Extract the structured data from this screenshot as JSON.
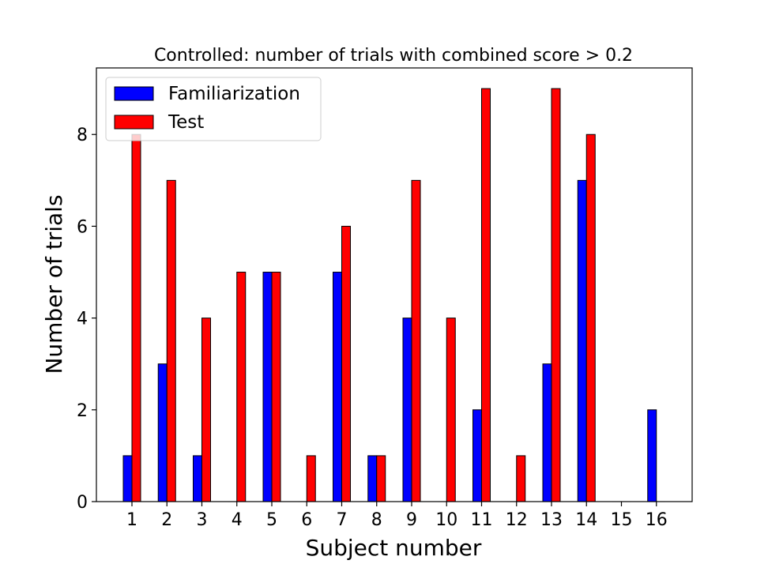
{
  "chart_data": {
    "type": "bar",
    "title": "Controlled: number of trials with combined score > 0.2",
    "xlabel": "Subject number",
    "ylabel": "Number of trials",
    "categories": [
      "1",
      "2",
      "3",
      "4",
      "5",
      "6",
      "7",
      "8",
      "9",
      "10",
      "11",
      "12",
      "13",
      "14",
      "15",
      "16"
    ],
    "series": [
      {
        "name": "Familiarization",
        "color": "#0000ff",
        "values": [
          1,
          3,
          1,
          0,
          5,
          0,
          5,
          1,
          4,
          0,
          2,
          0,
          3,
          7,
          0,
          2
        ]
      },
      {
        "name": "Test",
        "color": "#ff0000",
        "values": [
          8,
          7,
          4,
          5,
          5,
          1,
          6,
          1,
          7,
          4,
          9,
          1,
          9,
          8,
          0,
          0
        ]
      }
    ],
    "ylim": [
      0,
      9.45
    ],
    "yticks": [
      0,
      2,
      4,
      6,
      8
    ],
    "legend_position": "top-left",
    "grid": false
  }
}
